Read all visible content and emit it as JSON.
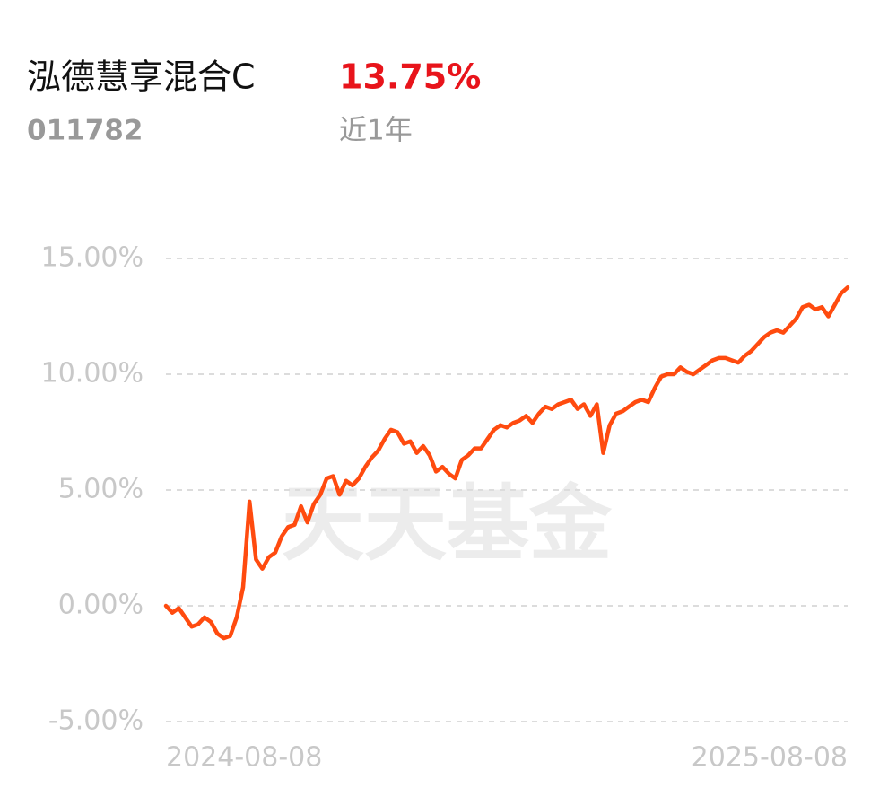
{
  "chart_data": {
    "type": "line",
    "title": "泓德慧享混合C",
    "headline_value": "13.75%",
    "subtitle": "011782",
    "period": "近1年",
    "watermark": "天天基金",
    "color": "#ff4b0f",
    "grid": true,
    "ylim": [
      -5,
      15
    ],
    "yticks": [
      {
        "value": -5,
        "label": "-5.00%"
      },
      {
        "value": 0,
        "label": "0.00%"
      },
      {
        "value": 5,
        "label": "5.00%"
      },
      {
        "value": 10,
        "label": "10.00%"
      },
      {
        "value": 15,
        "label": "15.00%"
      }
    ],
    "categories": [
      "2024-08-08",
      null,
      null,
      null,
      null,
      null,
      null,
      null,
      null,
      null,
      null,
      null,
      null,
      null,
      null,
      null,
      null,
      null,
      null,
      null,
      null,
      null,
      null,
      null,
      null,
      null,
      null,
      null,
      null,
      null,
      null,
      null,
      null,
      null,
      null,
      null,
      null,
      null,
      null,
      null,
      null,
      null,
      null,
      null,
      null,
      null,
      null,
      null,
      null,
      null,
      null,
      null,
      null,
      null,
      null,
      null,
      null,
      null,
      null,
      null,
      null,
      null,
      null,
      null,
      null,
      null,
      null,
      null,
      null,
      null,
      null,
      null,
      null,
      null,
      null,
      null,
      null,
      null,
      null,
      null,
      null,
      null,
      null,
      null,
      null,
      null,
      null,
      null,
      null,
      null,
      null,
      null,
      null,
      null,
      null,
      null,
      null,
      null,
      null,
      null,
      null,
      null,
      null,
      null,
      null,
      null,
      "2025-08-08"
    ],
    "values": [
      0.0,
      -0.3,
      -0.1,
      -0.5,
      -0.9,
      -0.8,
      -0.5,
      -0.7,
      -1.2,
      -1.4,
      -1.3,
      -0.5,
      0.8,
      4.5,
      2.0,
      1.6,
      2.1,
      2.3,
      3.0,
      3.4,
      3.5,
      4.3,
      3.6,
      4.4,
      4.8,
      5.5,
      5.6,
      4.8,
      5.4,
      5.2,
      5.5,
      6.0,
      6.4,
      6.7,
      7.2,
      7.6,
      7.5,
      7.0,
      7.1,
      6.6,
      6.9,
      6.5,
      5.8,
      6.0,
      5.7,
      5.5,
      6.3,
      6.5,
      6.8,
      6.8,
      7.2,
      7.6,
      7.8,
      7.7,
      7.9,
      8.0,
      8.2,
      7.9,
      8.3,
      8.6,
      8.5,
      8.7,
      8.8,
      8.9,
      8.5,
      8.7,
      8.2,
      8.7,
      6.6,
      7.8,
      8.3,
      8.4,
      8.6,
      8.8,
      8.9,
      8.8,
      9.4,
      9.9,
      10.0,
      10.0,
      10.3,
      10.1,
      10.0,
      10.2,
      10.4,
      10.6,
      10.7,
      10.7,
      10.6,
      10.5,
      10.8,
      11.0,
      11.3,
      11.6,
      11.8,
      11.9,
      11.8,
      12.1,
      12.4,
      12.9,
      13.0,
      12.8,
      12.9,
      12.5,
      13.0,
      13.5,
      13.75
    ]
  }
}
